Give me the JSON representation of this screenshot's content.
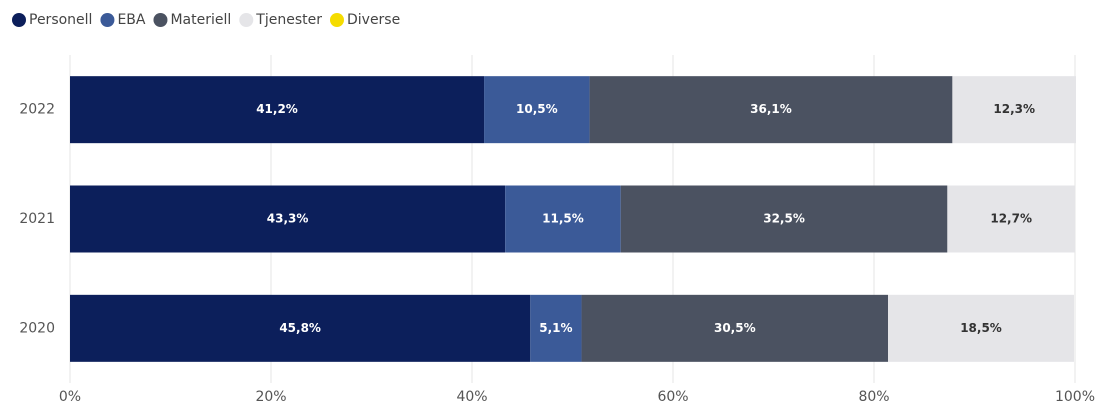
{
  "chart_data": {
    "type": "stacked_barh",
    "categories": [
      "2022",
      "2021",
      "2020"
    ],
    "series": [
      {
        "name": "Personell",
        "color": "#0c1f5b",
        "values": [
          41.2,
          43.3,
          45.8
        ],
        "value_labels": [
          "41,2%",
          "43,3%",
          "45,8%"
        ]
      },
      {
        "name": "EBA",
        "color": "#3b5a98",
        "values": [
          10.5,
          11.5,
          5.1
        ],
        "value_labels": [
          "10,5%",
          "11,5%",
          "5,1%"
        ]
      },
      {
        "name": "Materiell",
        "color": "#4b5261",
        "values": [
          36.1,
          32.5,
          30.5
        ],
        "value_labels": [
          "36,1%",
          "32,5%",
          "30,5%"
        ]
      },
      {
        "name": "Tjenester",
        "color": "#e5e5e8",
        "values": [
          12.3,
          12.7,
          18.5
        ],
        "value_labels": [
          "12,3%",
          "12,7%",
          "18,5%"
        ]
      },
      {
        "name": "Diverse",
        "color": "#f5dc00",
        "values": [
          0,
          0,
          0
        ]
      }
    ],
    "xlim": [
      0,
      100
    ],
    "xticks": [
      {
        "value": 0,
        "label": "0%"
      },
      {
        "value": 20,
        "label": "20%"
      },
      {
        "value": 40,
        "label": "40%"
      },
      {
        "value": 60,
        "label": "60%"
      },
      {
        "value": 80,
        "label": "80%"
      },
      {
        "value": 100,
        "label": "100%"
      }
    ],
    "grid": true,
    "legend": "top-left"
  }
}
